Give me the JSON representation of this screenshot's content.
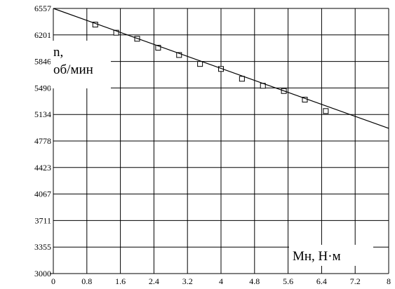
{
  "chart_data": {
    "type": "scatter",
    "title": "",
    "ylabel_line1": "n,",
    "ylabel_line2": "об/мин",
    "xlabel": "Мн, Н·м",
    "xlim": [
      0,
      8
    ],
    "ylim": [
      3000,
      6557
    ],
    "grid": true,
    "x_ticks": [
      "0",
      "0.8",
      "1.6",
      "2.4",
      "3.2",
      "4",
      "4.8",
      "5.6",
      "6.4",
      "7.2",
      "8"
    ],
    "y_ticks": [
      "3000",
      "3355",
      "3711",
      "4067",
      "4423",
      "4778",
      "5134",
      "5490",
      "5846",
      "6201",
      "6557"
    ],
    "series": [
      {
        "kind": "points",
        "marker": "square",
        "x": [
          1.0,
          1.5,
          2.0,
          2.5,
          3.0,
          3.5,
          4.0,
          4.5,
          5.0,
          5.5,
          6.0,
          6.5
        ],
        "y": [
          6340,
          6231,
          6150,
          6030,
          5932,
          5812,
          5745,
          5613,
          5519,
          5449,
          5333,
          5180
        ]
      },
      {
        "kind": "line",
        "x": [
          0,
          8
        ],
        "y": [
          6557,
          4948
        ]
      }
    ]
  }
}
